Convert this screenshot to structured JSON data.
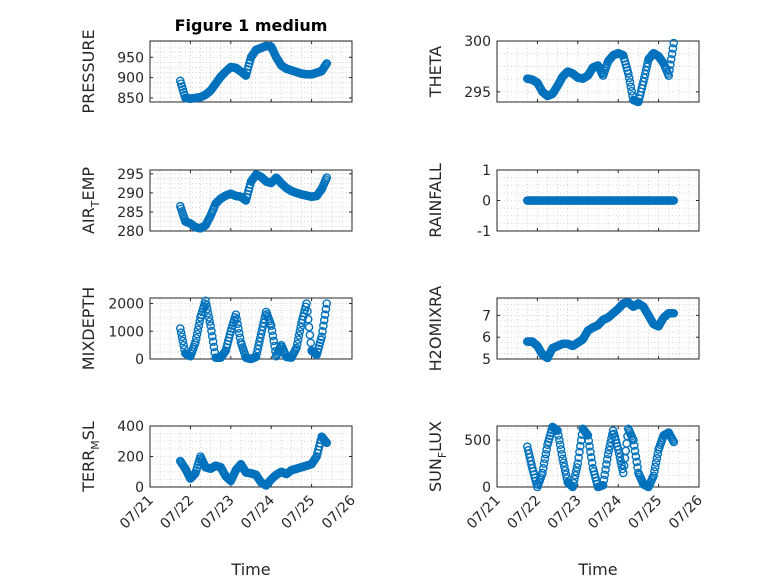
{
  "figure": {
    "title": "Figure 1 medium",
    "marker_color": "#0072BD"
  },
  "chart_data": [
    {
      "type": "scatter",
      "id": "pressure",
      "ylabel": "PRESSURE",
      "ylim": [
        840,
        990
      ],
      "yticks": [
        850,
        900,
        950
      ],
      "title": "Figure 1 medium",
      "x": [
        "07/21 18:00",
        "07/21 21:00",
        "07/22 00:00",
        "07/22 03:00",
        "07/22 06:00",
        "07/22 09:00",
        "07/22 12:00",
        "07/22 15:00",
        "07/22 18:00",
        "07/22 21:00",
        "07/23 00:00",
        "07/23 03:00",
        "07/23 06:00",
        "07/23 09:00",
        "07/23 12:00",
        "07/23 15:00",
        "07/23 18:00",
        "07/23 21:00",
        "07/24 00:00",
        "07/24 03:00",
        "07/24 06:00",
        "07/24 09:00",
        "07/24 12:00",
        "07/24 15:00",
        "07/24 18:00",
        "07/24 21:00",
        "07/25 00:00",
        "07/25 03:00",
        "07/25 06:00",
        "07/25 09:00"
      ],
      "y": [
        892,
        850,
        848,
        850,
        852,
        858,
        868,
        885,
        902,
        915,
        926,
        924,
        915,
        905,
        950,
        968,
        973,
        978,
        976,
        950,
        930,
        922,
        918,
        914,
        910,
        908,
        908,
        912,
        916,
        935
      ]
    },
    {
      "type": "scatter",
      "id": "theta",
      "ylabel": "THETA",
      "ylim": [
        294,
        300
      ],
      "yticks": [
        295,
        300
      ],
      "x": [
        "07/21 18:00",
        "07/21 21:00",
        "07/22 00:00",
        "07/22 03:00",
        "07/22 06:00",
        "07/22 09:00",
        "07/22 12:00",
        "07/22 15:00",
        "07/22 18:00",
        "07/22 21:00",
        "07/23 00:00",
        "07/23 03:00",
        "07/23 06:00",
        "07/23 09:00",
        "07/23 12:00",
        "07/23 15:00",
        "07/23 18:00",
        "07/23 21:00",
        "07/24 00:00",
        "07/24 03:00",
        "07/24 06:00",
        "07/24 09:00",
        "07/24 12:00",
        "07/24 15:00",
        "07/24 18:00",
        "07/24 21:00",
        "07/25 00:00",
        "07/25 03:00",
        "07/25 06:00",
        "07/25 09:00"
      ],
      "y": [
        296.3,
        296.2,
        295.9,
        295.0,
        294.6,
        294.8,
        295.6,
        296.5,
        297.0,
        296.8,
        296.4,
        296.3,
        296.6,
        297.4,
        297.6,
        296.6,
        298.0,
        298.6,
        298.8,
        298.6,
        296.8,
        294.2,
        294.0,
        296.0,
        298.2,
        298.8,
        298.5,
        297.8,
        296.6,
        299.8
      ]
    },
    {
      "type": "scatter",
      "id": "air_temp",
      "ylabel": "AIR_TEMP",
      "ylabel_parts": [
        "AIR",
        "T",
        "EMP"
      ],
      "ylim": [
        280,
        296
      ],
      "yticks": [
        280,
        285,
        290,
        295
      ],
      "x": [
        "07/21 18:00",
        "07/21 21:00",
        "07/22 00:00",
        "07/22 03:00",
        "07/22 06:00",
        "07/22 09:00",
        "07/22 12:00",
        "07/22 15:00",
        "07/22 18:00",
        "07/22 21:00",
        "07/23 00:00",
        "07/23 03:00",
        "07/23 06:00",
        "07/23 09:00",
        "07/23 12:00",
        "07/23 15:00",
        "07/23 18:00",
        "07/23 21:00",
        "07/24 00:00",
        "07/24 03:00",
        "07/24 06:00",
        "07/24 09:00",
        "07/24 12:00",
        "07/24 15:00",
        "07/24 18:00",
        "07/24 21:00",
        "07/25 00:00",
        "07/25 03:00",
        "07/25 06:00",
        "07/25 09:00"
      ],
      "y": [
        286.5,
        282.5,
        282.0,
        281.0,
        280.7,
        281.5,
        284.0,
        287.2,
        288.5,
        289.3,
        289.8,
        289.2,
        289.0,
        288.0,
        293.0,
        294.8,
        294.2,
        293.0,
        292.6,
        294.0,
        292.5,
        291.3,
        290.5,
        290.0,
        289.6,
        289.3,
        289.0,
        289.2,
        291.0,
        294.0
      ]
    },
    {
      "type": "scatter",
      "id": "rainfall",
      "ylabel": "RAINFALL",
      "ylim": [
        -1,
        1
      ],
      "yticks": [
        -1,
        0,
        1
      ],
      "x": [
        "07/21 18:00",
        "07/21 21:00",
        "07/22 00:00",
        "07/22 03:00",
        "07/22 06:00",
        "07/22 09:00",
        "07/22 12:00",
        "07/22 15:00",
        "07/22 18:00",
        "07/22 21:00",
        "07/23 00:00",
        "07/23 03:00",
        "07/23 06:00",
        "07/23 09:00",
        "07/23 12:00",
        "07/23 15:00",
        "07/23 18:00",
        "07/23 21:00",
        "07/24 00:00",
        "07/24 03:00",
        "07/24 06:00",
        "07/24 09:00",
        "07/24 12:00",
        "07/24 15:00",
        "07/24 18:00",
        "07/24 21:00",
        "07/25 00:00",
        "07/25 03:00",
        "07/25 06:00",
        "07/25 09:00"
      ],
      "y": [
        0,
        0,
        0,
        0,
        0,
        0,
        0,
        0,
        0,
        0,
        0,
        0,
        0,
        0,
        0,
        0,
        0,
        0,
        0,
        0,
        0,
        0,
        0,
        0,
        0,
        0,
        0,
        0,
        0,
        0
      ]
    },
    {
      "type": "scatter",
      "id": "mixdepth",
      "ylabel": "MIXDEPTH",
      "ylim": [
        0,
        2200
      ],
      "yticks": [
        0,
        1000,
        2000
      ],
      "x": [
        "07/21 18:00",
        "07/21 21:00",
        "07/22 00:00",
        "07/22 03:00",
        "07/22 06:00",
        "07/22 09:00",
        "07/22 12:00",
        "07/22 15:00",
        "07/22 18:00",
        "07/22 21:00",
        "07/23 00:00",
        "07/23 03:00",
        "07/23 06:00",
        "07/23 09:00",
        "07/23 12:00",
        "07/23 15:00",
        "07/23 18:00",
        "07/23 21:00",
        "07/24 00:00",
        "07/24 03:00",
        "07/24 06:00",
        "07/24 09:00",
        "07/24 12:00",
        "07/24 15:00",
        "07/24 18:00",
        "07/24 21:00",
        "07/25 00:00",
        "07/25 03:00",
        "07/25 06:00",
        "07/25 09:00"
      ],
      "y": [
        1100,
        200,
        100,
        600,
        1500,
        2100,
        1200,
        50,
        50,
        300,
        1000,
        1600,
        600,
        50,
        0,
        80,
        900,
        1700,
        1200,
        100,
        500,
        80,
        50,
        400,
        1300,
        2000,
        300,
        150,
        800,
        2000
      ]
    },
    {
      "type": "scatter",
      "id": "h2omixra",
      "ylabel": "H2OMIXRA",
      "ylim": [
        5,
        7.8
      ],
      "yticks": [
        5,
        6,
        7
      ],
      "x": [
        "07/21 18:00",
        "07/21 21:00",
        "07/22 00:00",
        "07/22 03:00",
        "07/22 06:00",
        "07/22 09:00",
        "07/22 12:00",
        "07/22 15:00",
        "07/22 18:00",
        "07/22 21:00",
        "07/23 00:00",
        "07/23 03:00",
        "07/23 06:00",
        "07/23 09:00",
        "07/23 12:00",
        "07/23 15:00",
        "07/23 18:00",
        "07/23 21:00",
        "07/24 00:00",
        "07/24 03:00",
        "07/24 06:00",
        "07/24 09:00",
        "07/24 12:00",
        "07/24 15:00",
        "07/24 18:00",
        "07/24 21:00",
        "07/25 00:00",
        "07/25 03:00",
        "07/25 06:00",
        "07/25 09:00"
      ],
      "y": [
        5.8,
        5.8,
        5.6,
        5.2,
        5.05,
        5.5,
        5.6,
        5.7,
        5.7,
        5.6,
        5.75,
        5.9,
        6.3,
        6.45,
        6.55,
        6.8,
        6.9,
        7.1,
        7.3,
        7.55,
        7.6,
        7.4,
        7.55,
        7.4,
        7.0,
        6.6,
        6.5,
        6.9,
        7.1,
        7.1
      ]
    },
    {
      "type": "scatter",
      "id": "terr_msl",
      "ylabel": "TERR_MSL",
      "ylabel_parts": [
        "TERR",
        "M",
        "SL"
      ],
      "ylim": [
        0,
        400
      ],
      "yticks": [
        0,
        200,
        400
      ],
      "x": [
        "07/21 18:00",
        "07/21 21:00",
        "07/22 00:00",
        "07/22 03:00",
        "07/22 06:00",
        "07/22 09:00",
        "07/22 12:00",
        "07/22 15:00",
        "07/22 18:00",
        "07/22 21:00",
        "07/23 00:00",
        "07/23 03:00",
        "07/23 06:00",
        "07/23 09:00",
        "07/23 12:00",
        "07/23 15:00",
        "07/23 18:00",
        "07/23 21:00",
        "07/24 00:00",
        "07/24 03:00",
        "07/24 06:00",
        "07/24 09:00",
        "07/24 12:00",
        "07/24 15:00",
        "07/24 18:00",
        "07/24 21:00",
        "07/25 00:00",
        "07/25 03:00",
        "07/25 06:00",
        "07/25 09:00"
      ],
      "y": [
        170,
        120,
        55,
        90,
        200,
        130,
        120,
        140,
        130,
        70,
        40,
        110,
        150,
        95,
        90,
        80,
        30,
        10,
        50,
        80,
        100,
        85,
        110,
        120,
        130,
        140,
        150,
        200,
        330,
        290
      ]
    },
    {
      "type": "scatter",
      "id": "sun_flux",
      "ylabel": "SUN_FLUX",
      "ylabel_parts": [
        "SUN",
        "F",
        "LUX"
      ],
      "ylim": [
        0,
        650
      ],
      "yticks": [
        0,
        500
      ],
      "x": [
        "07/21 18:00",
        "07/21 21:00",
        "07/22 00:00",
        "07/22 03:00",
        "07/22 06:00",
        "07/22 09:00",
        "07/22 12:00",
        "07/22 15:00",
        "07/22 18:00",
        "07/22 21:00",
        "07/23 00:00",
        "07/23 03:00",
        "07/23 06:00",
        "07/23 09:00",
        "07/23 12:00",
        "07/23 15:00",
        "07/23 18:00",
        "07/23 21:00",
        "07/24 00:00",
        "07/24 03:00",
        "07/24 06:00",
        "07/24 09:00",
        "07/24 12:00",
        "07/24 15:00",
        "07/24 18:00",
        "07/24 21:00",
        "07/25 00:00",
        "07/25 03:00",
        "07/25 06:00",
        "07/25 09:00"
      ],
      "y": [
        430,
        200,
        0,
        150,
        450,
        640,
        600,
        300,
        50,
        0,
        250,
        620,
        550,
        200,
        0,
        20,
        350,
        600,
        400,
        150,
        620,
        500,
        150,
        30,
        0,
        120,
        400,
        550,
        580,
        480
      ]
    }
  ],
  "x_axis": {
    "label": "Time",
    "ticks": [
      "07/21",
      "07/22",
      "07/23",
      "07/24",
      "07/25",
      "07/26"
    ],
    "range": [
      "07/21 00:00",
      "07/26 00:00"
    ]
  }
}
